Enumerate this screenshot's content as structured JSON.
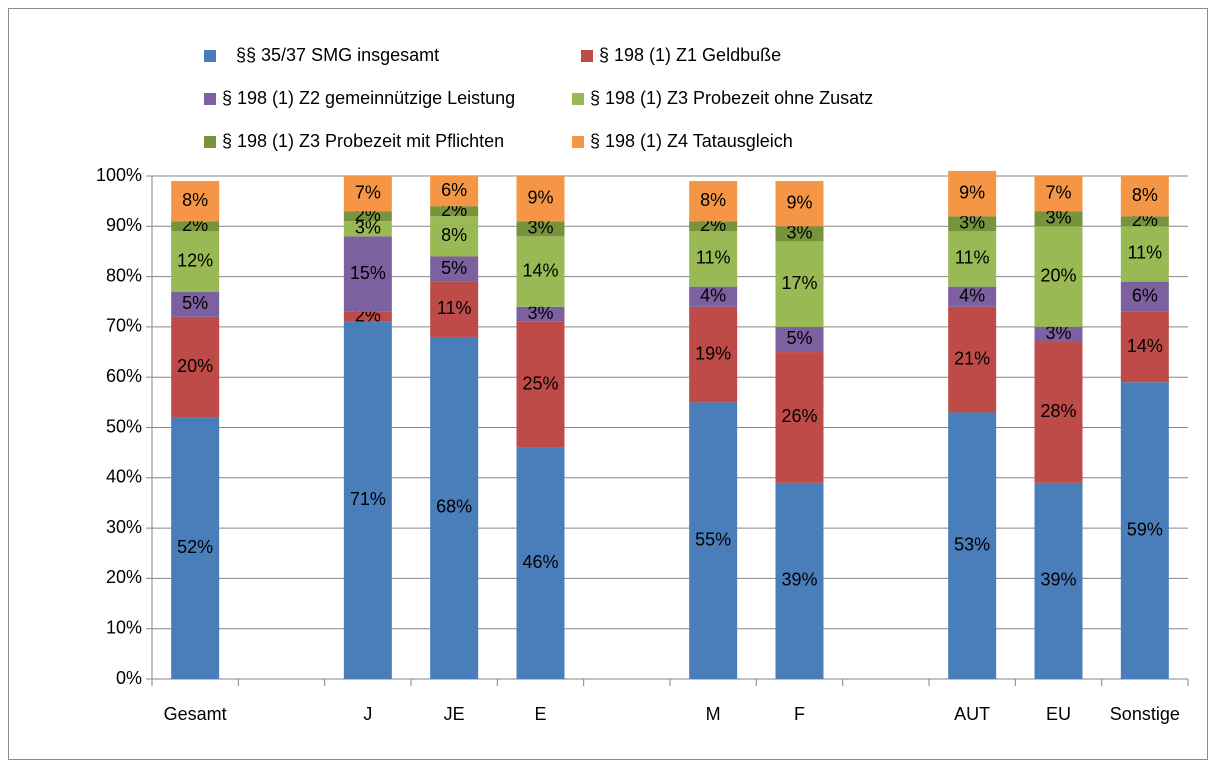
{
  "chart_data": {
    "type": "bar",
    "stacked": true,
    "categories": [
      "Gesamt",
      null,
      "J",
      "JE",
      "E",
      null,
      "M",
      "F",
      null,
      "AUT",
      "EU",
      "Sonstige"
    ],
    "series": [
      {
        "name": "§§ 35/37 SMG insgesamt",
        "color": "#4a7ebb",
        "values": [
          52,
          null,
          71,
          68,
          46,
          null,
          55,
          39,
          null,
          53,
          39,
          59
        ],
        "value_labels": [
          "52%",
          null,
          "71%",
          "68%",
          "46%",
          null,
          "55%",
          "39%",
          null,
          "53%",
          "39%",
          "59%"
        ]
      },
      {
        "name": "§ 198 (1) Z1 Geldbuße",
        "color": "#be4b48",
        "values": [
          20,
          null,
          2,
          11,
          25,
          null,
          19,
          26,
          null,
          21,
          28,
          14
        ],
        "value_labels": [
          "20%",
          null,
          "2%",
          "11%",
          "25%",
          null,
          "19%",
          "26%",
          null,
          "21%",
          "28%",
          "14%"
        ]
      },
      {
        "name": "§ 198 (1) Z2 gemeinnützige Leistung",
        "color": "#7d60a0",
        "values": [
          5,
          null,
          15,
          5,
          3,
          null,
          4,
          5,
          null,
          4,
          3,
          6
        ],
        "value_labels": [
          "5%",
          null,
          "15%",
          "5%",
          "3%",
          null,
          "4%",
          "5%",
          null,
          "4%",
          "3%",
          "6%"
        ]
      },
      {
        "name": "§ 198 (1) Z3 Probezeit ohne Zusatz",
        "color": "#98b954",
        "values": [
          12,
          null,
          3,
          8,
          14,
          null,
          11,
          17,
          null,
          11,
          20,
          11
        ],
        "value_labels": [
          "12%",
          null,
          "3%",
          "8%",
          "14%",
          null,
          "11%",
          "17%",
          null,
          "11%",
          "20%",
          "11%"
        ]
      },
      {
        "name": "§ 198 (1) Z3 Probezeit mit Pflichten",
        "color": "#77933c",
        "values": [
          2,
          null,
          2,
          2,
          3,
          null,
          2,
          3,
          null,
          3,
          3,
          2
        ],
        "value_labels": [
          "2%",
          null,
          "2%",
          "2%",
          "3%",
          null,
          "2%",
          "3%",
          null,
          "3%",
          "3%",
          "2%"
        ]
      },
      {
        "name": "§ 198 (1) Z4 Tatausgleich",
        "color": "#f59647",
        "values": [
          8,
          null,
          7,
          6,
          9,
          null,
          8,
          9,
          null,
          9,
          7,
          8
        ],
        "value_labels": [
          "8%",
          null,
          "7%",
          "6%",
          "9%",
          null,
          "8%",
          "9%",
          null,
          "9%",
          "7%",
          "8%"
        ]
      }
    ],
    "ylim": [
      0,
      100
    ],
    "yticks": [
      {
        "value": 0,
        "label": "0%"
      },
      {
        "value": 10,
        "label": "10%"
      },
      {
        "value": 20,
        "label": "20%"
      },
      {
        "value": 30,
        "label": "30%"
      },
      {
        "value": 40,
        "label": "40%"
      },
      {
        "value": 50,
        "label": "50%"
      },
      {
        "value": 60,
        "label": "60%"
      },
      {
        "value": 70,
        "label": "70%"
      },
      {
        "value": 80,
        "label": "80%"
      },
      {
        "value": 90,
        "label": "90%"
      },
      {
        "value": 100,
        "label": "100%"
      }
    ],
    "grid": true,
    "legend": "top"
  }
}
